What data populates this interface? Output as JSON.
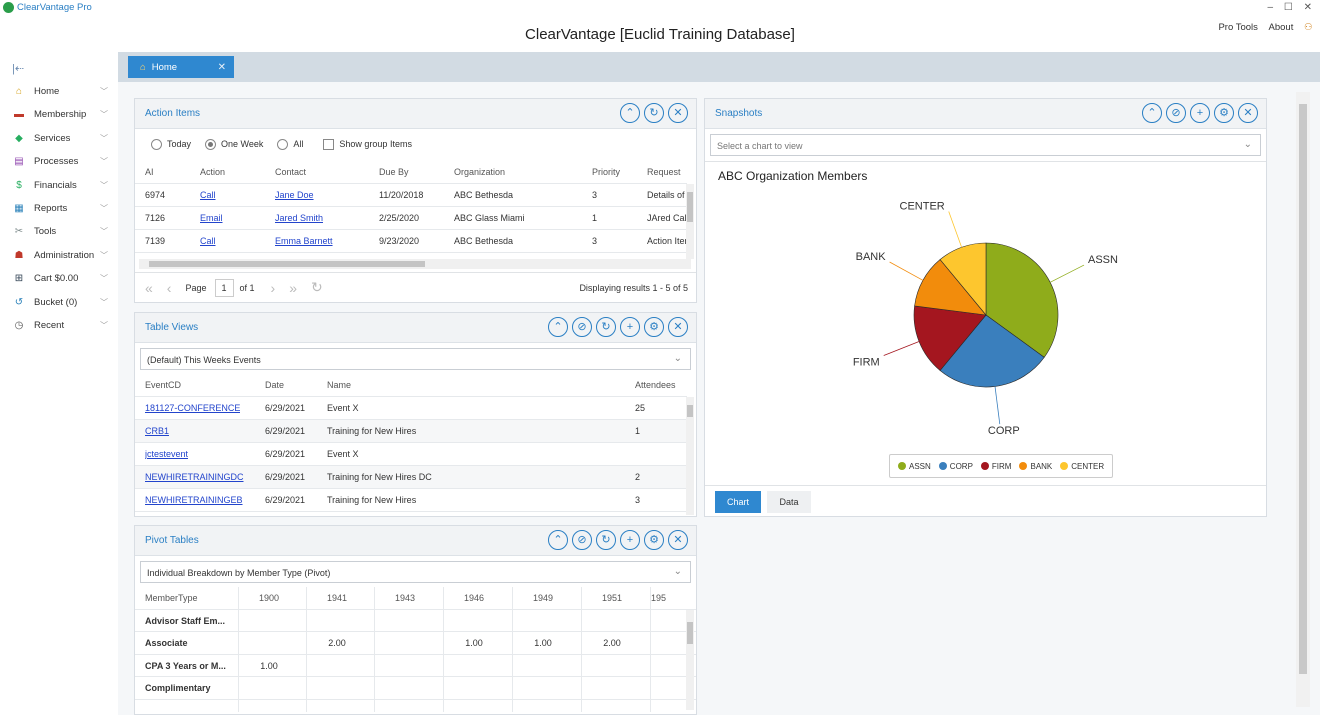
{
  "app": {
    "name": "ClearVantage Pro",
    "title": "ClearVantage [Euclid Training Database]",
    "window_controls": "– ☐ ✕"
  },
  "top_links": {
    "pro_tools": "Pro Tools",
    "about": "About"
  },
  "sidebar": {
    "items": [
      {
        "label": "Home",
        "icon": "⌂",
        "color": "#d4a017"
      },
      {
        "label": "Membership",
        "icon": "▬",
        "color": "#c0392b"
      },
      {
        "label": "Services",
        "icon": "◆",
        "color": "#27ae60"
      },
      {
        "label": "Processes",
        "icon": "▤",
        "color": "#8e44ad"
      },
      {
        "label": "Financials",
        "icon": "$",
        "color": "#27ae60"
      },
      {
        "label": "Reports",
        "icon": "▦",
        "color": "#2980b9"
      },
      {
        "label": "Tools",
        "icon": "✂",
        "color": "#7f8c8d"
      },
      {
        "label": "Administration",
        "icon": "☗",
        "color": "#c0392b"
      },
      {
        "label": "Cart $0.00",
        "icon": "⊞",
        "color": "#2c3e50"
      },
      {
        "label": "Bucket (0)",
        "icon": "↺",
        "color": "#2980b9"
      },
      {
        "label": "Recent",
        "icon": "◷",
        "color": "#555"
      }
    ]
  },
  "tab": {
    "label": "Home",
    "close": "✕"
  },
  "action_items": {
    "title": "Action Items",
    "filters": {
      "today": "Today",
      "one_week": "One Week",
      "all": "All",
      "show_group": "Show group Items"
    },
    "columns": [
      "AI",
      "Action",
      "Contact",
      "Due By",
      "Organization",
      "Priority",
      "Request"
    ],
    "rows": [
      [
        "6974",
        "Call",
        "Jane Doe",
        "11/20/2018",
        "ABC Bethesda",
        "3",
        "Details of t"
      ],
      [
        "7126",
        "Email",
        "Jared Smith",
        "2/25/2020",
        "ABC Glass Miami",
        "1",
        "JAred Calle"
      ],
      [
        "7139",
        "Call",
        "Emma Barnett",
        "9/23/2020",
        "ABC Bethesda",
        "3",
        "Action Iten"
      ]
    ],
    "pager": {
      "page_label": "Page",
      "page": "1",
      "of": "of 1",
      "display": "Displaying results 1 - 5 of 5"
    }
  },
  "table_views": {
    "title": "Table Views",
    "selected": "(Default) This Weeks Events",
    "columns": [
      "EventCD",
      "Date",
      "Name",
      "Attendees"
    ],
    "rows": [
      [
        "181127-CONFERENCE",
        "6/29/2021",
        "Event X",
        "25"
      ],
      [
        "CRB1",
        "6/29/2021",
        "Training for New Hires",
        "1"
      ],
      [
        "jctestevent",
        "6/29/2021",
        "Event X",
        ""
      ],
      [
        "NEWHIRETRAININGDC",
        "6/29/2021",
        "Training for New Hires DC",
        "2"
      ],
      [
        "NEWHIRETRAININGEB",
        "6/29/2021",
        "Training for New Hires",
        "3"
      ]
    ]
  },
  "pivot_tables": {
    "title": "Pivot Tables",
    "selected": "Individual Breakdown by Member Type (Pivot)",
    "columns": [
      "MemberType",
      "1900",
      "1941",
      "1943",
      "1946",
      "1949",
      "1951",
      "195"
    ],
    "rows": [
      [
        "Advisor Staff Em...",
        "",
        "",
        "",
        "",
        "",
        "",
        ""
      ],
      [
        "Associate",
        "",
        "2.00",
        "",
        "1.00",
        "1.00",
        "2.00",
        ""
      ],
      [
        "CPA 3 Years or M...",
        "1.00",
        "",
        "",
        "",
        "",
        "",
        ""
      ],
      [
        "Complimentary",
        "",
        "",
        "",
        "",
        "",
        "",
        ""
      ]
    ]
  },
  "snapshots": {
    "title": "Snapshots",
    "placeholder": "Select a chart to view",
    "buttons": {
      "chart": "Chart",
      "data": "Data"
    }
  },
  "chart_data": {
    "type": "pie",
    "title": "ABC Organization Members",
    "categories": [
      "ASSN",
      "CORP",
      "FIRM",
      "BANK",
      "CENTER"
    ],
    "values": [
      35,
      26,
      16,
      12,
      11
    ],
    "colors": [
      "#8fac1b",
      "#3a7fbd",
      "#a4161f",
      "#f28c0c",
      "#fdc62e"
    ],
    "legend": "bottom"
  }
}
